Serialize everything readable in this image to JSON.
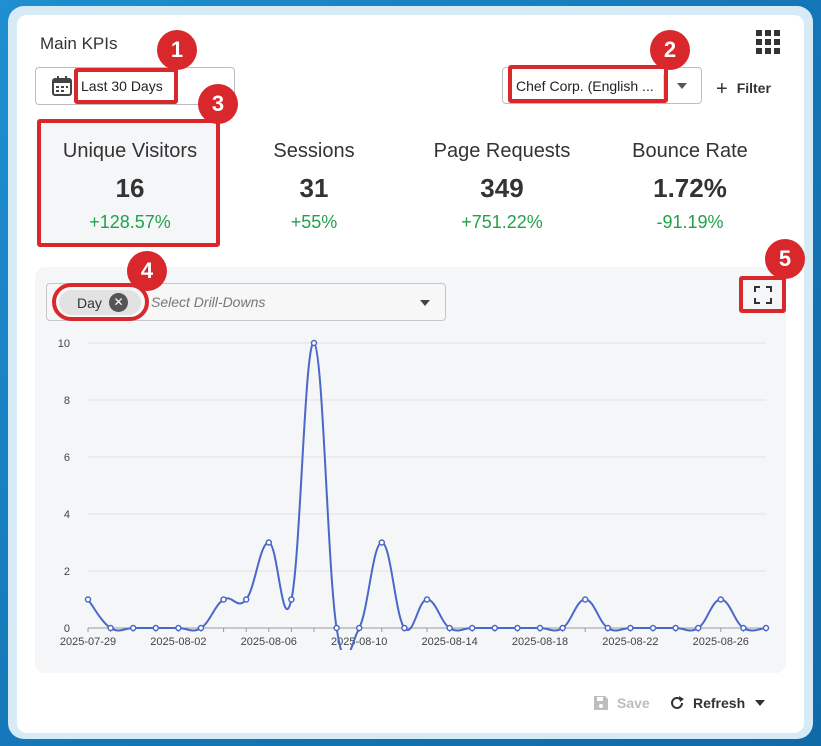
{
  "header": {
    "title": "Main KPIs",
    "apps_icon": "apps-grid-icon"
  },
  "date_range": {
    "label": "Last 30 Days",
    "icon": "calendar-icon"
  },
  "site_select": {
    "selected": "Chef Corp. (English ..."
  },
  "filter": {
    "label": "Filter",
    "icon": "plus-icon"
  },
  "kpis": [
    {
      "name": "Unique Visitors",
      "value": "16",
      "change": "+128.57%"
    },
    {
      "name": "Sessions",
      "value": "31",
      "change": "+55%"
    },
    {
      "name": "Page Requests",
      "value": "349",
      "change": "+751.22%"
    },
    {
      "name": "Bounce Rate",
      "value": "1.72%",
      "change": "-91.19%"
    }
  ],
  "drilldown": {
    "chip": "Day",
    "placeholder": "Select Drill-Downs"
  },
  "footer": {
    "save_label": "Save",
    "refresh_label": "Refresh"
  },
  "annotations": [
    "1",
    "2",
    "3",
    "4",
    "5"
  ],
  "colors": {
    "line": "#4a68c8",
    "positive": "#22a24a",
    "highlight": "#d8282c"
  },
  "chart_data": {
    "type": "line",
    "x": [
      "2025-07-29",
      "2025-07-30",
      "2025-07-31",
      "2025-08-01",
      "2025-08-02",
      "2025-08-03",
      "2025-08-04",
      "2025-08-05",
      "2025-08-06",
      "2025-08-07",
      "2025-08-08",
      "2025-08-09",
      "2025-08-10",
      "2025-08-11",
      "2025-08-12",
      "2025-08-13",
      "2025-08-14",
      "2025-08-15",
      "2025-08-16",
      "2025-08-17",
      "2025-08-18",
      "2025-08-19",
      "2025-08-20",
      "2025-08-21",
      "2025-08-22",
      "2025-08-23",
      "2025-08-24",
      "2025-08-25",
      "2025-08-26",
      "2025-08-27",
      "2025-08-28"
    ],
    "values": [
      1,
      0,
      0,
      0,
      0,
      0,
      1,
      1,
      3,
      1,
      10,
      0,
      0,
      3,
      0,
      1,
      0,
      0,
      0,
      0,
      0,
      0,
      1,
      0,
      0,
      0,
      0,
      0,
      1,
      0,
      0
    ],
    "xticks": [
      "2025-07-29",
      "2025-08-02",
      "2025-08-06",
      "2025-08-10",
      "2025-08-14",
      "2025-08-18",
      "2025-08-22",
      "2025-08-26"
    ],
    "yticks": [
      0,
      2,
      4,
      6,
      8,
      10
    ],
    "ylim": [
      0,
      10
    ],
    "grid": true
  }
}
